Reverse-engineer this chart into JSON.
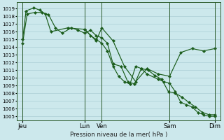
{
  "bg_color": "#cce8ec",
  "grid_color": "#aacdd4",
  "line_color": "#1a5c1a",
  "xlabel": "Pression niveau de la mer( hPa )",
  "ylim_min": 1004.5,
  "ylim_max": 1019.8,
  "yticks": [
    1005,
    1006,
    1007,
    1008,
    1009,
    1010,
    1011,
    1012,
    1013,
    1014,
    1015,
    1016,
    1017,
    1018,
    1019
  ],
  "xlim_min": 0,
  "xlim_max": 18.0,
  "xtick_positions": [
    0.5,
    6.0,
    7.5,
    13.5,
    17.5
  ],
  "xtick_labels": [
    "Jeu",
    "Lun",
    "Ven",
    "Sam",
    "Dim"
  ],
  "vline_positions": [
    0.5,
    6.0,
    7.5,
    13.5,
    17.5
  ],
  "line1": {
    "x": [
      0.5,
      0.9,
      1.6,
      2.2,
      2.8,
      3.4,
      4.0,
      4.8,
      5.4,
      6.0,
      6.5,
      7.0,
      7.5,
      8.0,
      8.5,
      9.2,
      9.8,
      10.4,
      11.0,
      11.6,
      12.2,
      12.8,
      13.4,
      14.0,
      14.6,
      15.2,
      15.8,
      16.4,
      17.0,
      17.5
    ],
    "y": [
      1014.5,
      1018.3,
      1018.5,
      1018.5,
      1018.2,
      1016.5,
      1015.8,
      1016.5,
      1016.2,
      1015.8,
      1016.2,
      1015.5,
      1015.2,
      1014.5,
      1011.8,
      1011.5,
      1009.5,
      1009.2,
      1011.2,
      1011.0,
      1010.3,
      1009.8,
      1008.2,
      1008.0,
      1007.5,
      1006.8,
      1006.2,
      1005.5,
      1005.2,
      1005.2
    ]
  },
  "line2": {
    "x": [
      0.5,
      0.8,
      1.5,
      2.0,
      2.5,
      3.0,
      4.5,
      6.0,
      7.0,
      7.5,
      8.5,
      9.5,
      10.5,
      11.5,
      12.5,
      13.5,
      14.5,
      15.5,
      16.5,
      17.5
    ],
    "y": [
      1015.0,
      1018.7,
      1019.1,
      1018.8,
      1018.3,
      1016.0,
      1016.5,
      1016.3,
      1014.8,
      1016.5,
      1014.8,
      1011.5,
      1009.5,
      1011.2,
      1010.5,
      1010.2,
      1013.3,
      1013.8,
      1013.5,
      1013.8
    ]
  },
  "line3": {
    "x": [
      6.0,
      6.5,
      7.0,
      7.5,
      8.0,
      8.5,
      9.0,
      9.5,
      10.0,
      10.5,
      11.0,
      11.5,
      12.5,
      13.0,
      13.5,
      14.0,
      14.5,
      15.0,
      15.5,
      16.0,
      16.5,
      17.0,
      17.5
    ],
    "y": [
      1016.3,
      1015.5,
      1015.0,
      1014.5,
      1013.5,
      1011.5,
      1010.2,
      1009.5,
      1009.2,
      1011.5,
      1011.2,
      1010.5,
      1009.8,
      1009.5,
      1009.3,
      1008.2,
      1006.8,
      1006.5,
      1006.2,
      1005.5,
      1005.2,
      1005.0,
      1005.0
    ]
  }
}
